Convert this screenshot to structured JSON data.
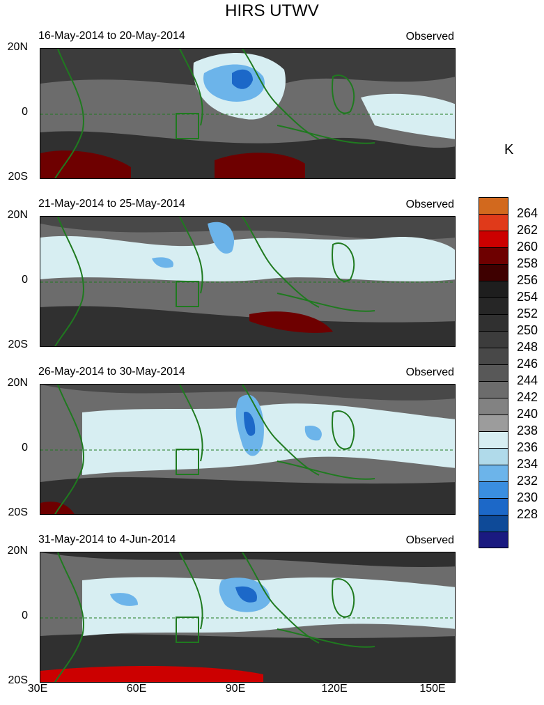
{
  "title": "HIRS UTWV",
  "panels": [
    {
      "label": "16-May-2014 to 20-May-2014",
      "tag": "Observed"
    },
    {
      "label": "21-May-2014 to 25-May-2014",
      "tag": "Observed"
    },
    {
      "label": "26-May-2014 to 30-May-2014",
      "tag": "Observed"
    },
    {
      "label": "31-May-2014 to 4-Jun-2014",
      "tag": "Observed"
    }
  ],
  "lat_labels": [
    "20N",
    "0",
    "20S"
  ],
  "lon_labels": [
    "30E",
    "60E",
    "90E",
    "120E",
    "150E"
  ],
  "colorbar": {
    "units": "K",
    "labels": [
      "264",
      "262",
      "260",
      "258",
      "256",
      "254",
      "252",
      "250",
      "248",
      "246",
      "244",
      "242",
      "240",
      "238",
      "236",
      "234",
      "232",
      "230",
      "228"
    ],
    "colors": [
      "#d2691e",
      "#e03a1a",
      "#cc0000",
      "#6e0000",
      "#3e0000",
      "#1e1e1e",
      "#262626",
      "#303030",
      "#3c3c3c",
      "#484848",
      "#585858",
      "#6c6c6c",
      "#828282",
      "#9c9c9c",
      "#d7eef2",
      "#b0daea",
      "#6cb4ea",
      "#3a8ee0",
      "#1c68c8",
      "#0e4a98",
      "#1a1a80"
    ]
  }
}
